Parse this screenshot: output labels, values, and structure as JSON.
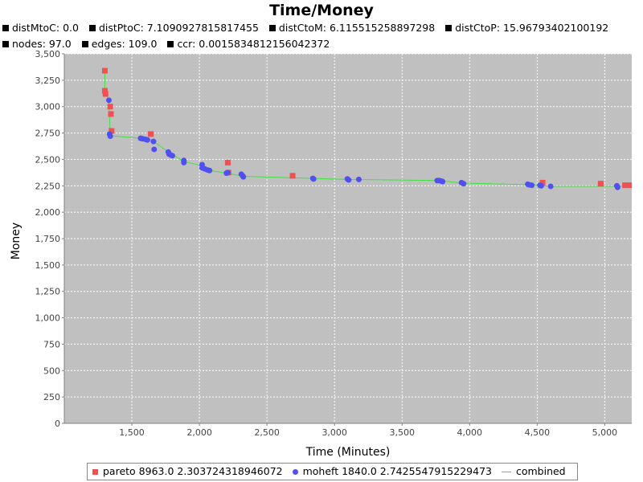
{
  "chart_data": {
    "type": "scatter",
    "title": "Time/Money",
    "info": [
      {
        "label": "distMtoC: 0.0"
      },
      {
        "label": "distPtoC: 7.1090927815817455"
      },
      {
        "label": "distCtoM: 6.115515258897298"
      },
      {
        "label": "distCtoP: 15.96793402100192"
      },
      {
        "label": "nodes: 97.0"
      },
      {
        "label": "edges: 109.0"
      },
      {
        "label": "ccr: 0.0015834812156042372"
      }
    ],
    "xlabel": "Time (Minutes)",
    "ylabel": "Money",
    "xlim": [
      1000,
      5200
    ],
    "ylim": [
      0,
      3500
    ],
    "xticks": [
      1500,
      2000,
      2500,
      3000,
      3500,
      4000,
      4500,
      5000
    ],
    "xtick_labels": [
      "1,500",
      "2,000",
      "2,500",
      "3,000",
      "3,500",
      "4,000",
      "4,500",
      "5,000"
    ],
    "yticks": [
      0,
      250,
      500,
      750,
      1000,
      1250,
      1500,
      1750,
      2000,
      2250,
      2500,
      2750,
      3000,
      3250,
      3500
    ],
    "ytick_labels": [
      "0",
      "250",
      "500",
      "750",
      "1,000",
      "1,250",
      "1,500",
      "1,750",
      "2,000",
      "2,250",
      "2,500",
      "2,750",
      "3,000",
      "3,250",
      "3,500"
    ],
    "grid": true,
    "legend_position": "bottom",
    "series": [
      {
        "name": "pareto 8963.0 2.303724318946072",
        "marker": "square",
        "color": "#f05050",
        "points": [
          [
            1300,
            3340
          ],
          [
            1300,
            3150
          ],
          [
            1305,
            3120
          ],
          [
            1340,
            3000
          ],
          [
            1345,
            2930
          ],
          [
            1350,
            2770
          ],
          [
            1640,
            2740
          ],
          [
            2210,
            2470
          ],
          [
            2215,
            2375
          ],
          [
            2690,
            2345
          ],
          [
            4540,
            2280
          ],
          [
            4970,
            2270
          ],
          [
            5150,
            2255
          ],
          [
            5180,
            2255
          ]
        ]
      },
      {
        "name": "moheft 1840.0 2.7425547915229473",
        "marker": "circle",
        "color": "#5050f0",
        "points": [
          [
            1330,
            3060
          ],
          [
            1335,
            2740
          ],
          [
            1340,
            2720
          ],
          [
            1565,
            2700
          ],
          [
            1580,
            2695
          ],
          [
            1600,
            2690
          ],
          [
            1615,
            2685
          ],
          [
            1660,
            2670
          ],
          [
            1665,
            2595
          ],
          [
            1770,
            2570
          ],
          [
            1775,
            2550
          ],
          [
            1790,
            2540
          ],
          [
            1800,
            2535
          ],
          [
            1885,
            2490
          ],
          [
            1885,
            2470
          ],
          [
            2020,
            2450
          ],
          [
            2020,
            2420
          ],
          [
            2040,
            2410
          ],
          [
            2060,
            2400
          ],
          [
            2075,
            2395
          ],
          [
            2200,
            2370
          ],
          [
            2210,
            2375
          ],
          [
            2310,
            2360
          ],
          [
            2320,
            2345
          ],
          [
            2325,
            2335
          ],
          [
            2840,
            2320
          ],
          [
            2845,
            2315
          ],
          [
            3095,
            2315
          ],
          [
            3105,
            2305
          ],
          [
            3180,
            2310
          ],
          [
            3760,
            2300
          ],
          [
            3775,
            2300
          ],
          [
            3790,
            2295
          ],
          [
            3800,
            2290
          ],
          [
            3940,
            2280
          ],
          [
            3955,
            2270
          ],
          [
            4430,
            2265
          ],
          [
            4440,
            2260
          ],
          [
            4460,
            2255
          ],
          [
            4520,
            2255
          ],
          [
            4530,
            2250
          ],
          [
            4600,
            2245
          ],
          [
            5090,
            2250
          ],
          [
            5095,
            2235
          ]
        ]
      },
      {
        "name": "combined",
        "marker": "line",
        "color": "#40e040",
        "points": [
          [
            1300,
            3340
          ],
          [
            1300,
            3150
          ],
          [
            1310,
            3110
          ],
          [
            1330,
            3060
          ],
          [
            1340,
            2740
          ],
          [
            1345,
            2725
          ],
          [
            1560,
            2700
          ],
          [
            1640,
            2690
          ],
          [
            1770,
            2570
          ],
          [
            1885,
            2480
          ],
          [
            2020,
            2440
          ],
          [
            2080,
            2395
          ],
          [
            2200,
            2370
          ],
          [
            2330,
            2340
          ],
          [
            2840,
            2320
          ],
          [
            3100,
            2310
          ],
          [
            3770,
            2300
          ],
          [
            3950,
            2275
          ],
          [
            4450,
            2260
          ],
          [
            4600,
            2245
          ],
          [
            5090,
            2245
          ],
          [
            5180,
            2255
          ]
        ]
      }
    ]
  }
}
